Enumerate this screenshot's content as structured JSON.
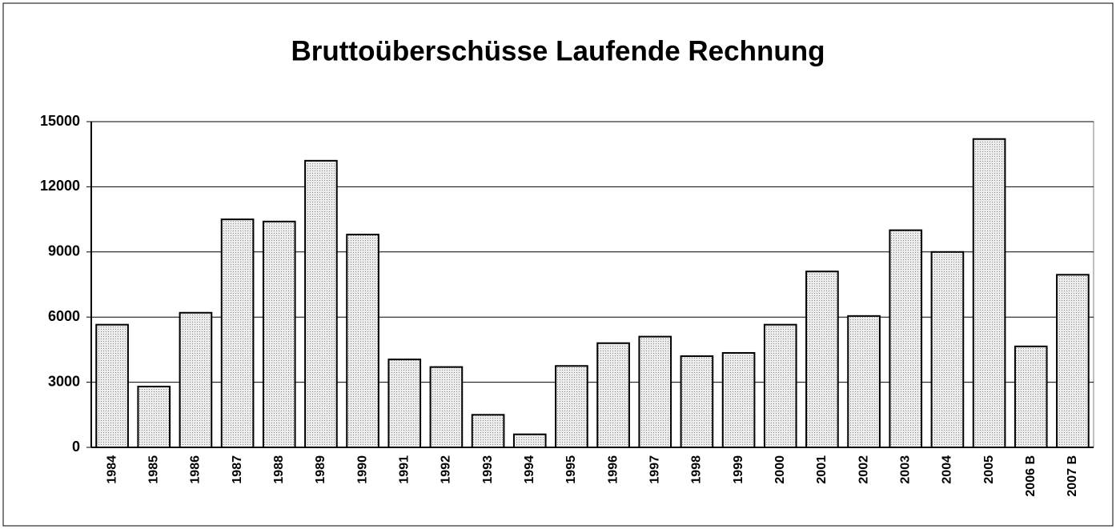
{
  "chart_data": {
    "type": "bar",
    "title": "Bruttoüberschüsse Laufende Rechnung",
    "categories": [
      "1984",
      "1985",
      "1986",
      "1987",
      "1988",
      "1989",
      "1990",
      "1991",
      "1992",
      "1993",
      "1994",
      "1995",
      "1996",
      "1997",
      "1998",
      "1999",
      "2000",
      "2001",
      "2002",
      "2003",
      "2004",
      "2005",
      "2006 B",
      "2007 B"
    ],
    "values": [
      5650,
      2800,
      6200,
      10500,
      10400,
      13200,
      9800,
      4050,
      3700,
      1500,
      600,
      3750,
      4800,
      5100,
      4200,
      4350,
      5650,
      8100,
      6050,
      10000,
      9000,
      14200,
      4650,
      7950
    ],
    "color": "#d4d4d4",
    "ylim": [
      0,
      15000
    ],
    "yticks": [
      0,
      3000,
      6000,
      9000,
      12000,
      15000
    ],
    "grid": true
  }
}
